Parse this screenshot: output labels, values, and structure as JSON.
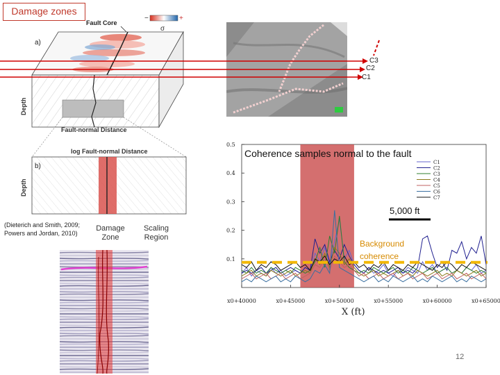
{
  "slide": {
    "title": "Damage zones",
    "citation_line1": "(Dieterich and Smith, 2009;",
    "citation_line2": "Powers and Jordan, 2010)",
    "slide_number": "12",
    "panel_a": {
      "label": "a)",
      "fault_core": "Fault Core",
      "sigma": "σ",
      "minus": "−",
      "plus": "+",
      "depth": "Depth",
      "xlabel": "Fault-normal Distance"
    },
    "panel_b": {
      "label": "b)",
      "top_label": "log Fault-normal Distance",
      "depth": "Depth",
      "damage_zone_1": "Damage",
      "damage_zone_2": "Zone",
      "scaling_1": "Scaling",
      "scaling_2": "Region"
    },
    "seismic_lines": [
      "C3",
      "C2",
      "C1"
    ],
    "annotations": {
      "scale": "5,000 ft",
      "background_1": "Background",
      "background_2": "coherence"
    }
  },
  "chart_data": {
    "type": "line",
    "title": "Coherence samples normal to the fault",
    "xlabel": "X (ft)",
    "ylabel": "",
    "xlim": [
      40000,
      65000
    ],
    "ylim": [
      0,
      0.5
    ],
    "x_ticks": [
      "x0+40000",
      "x0+45000",
      "x0+50000",
      "x0+55000",
      "x0+60000",
      "x0+65000"
    ],
    "y_ticks": [
      "0.1",
      "0.2",
      "0.3",
      "0.4",
      "0.5"
    ],
    "damage_zone_x": [
      46000,
      51500
    ],
    "background_level": 0.088,
    "legend_position": "right",
    "series": [
      {
        "name": "C1",
        "color": "#6666cc",
        "values": [
          0.05,
          0.07,
          0.04,
          0.06,
          0.05,
          0.04,
          0.07,
          0.05,
          0.06,
          0.04,
          0.05,
          0.06,
          0.05,
          0.07,
          0.06,
          0.12,
          0.09,
          0.14,
          0.08,
          0.16,
          0.24,
          0.1,
          0.13,
          0.08,
          0.06,
          0.05,
          0.07,
          0.05,
          0.06,
          0.08,
          0.05,
          0.04,
          0.06,
          0.05,
          0.07,
          0.06,
          0.05,
          0.09,
          0.06,
          0.08,
          0.05,
          0.06,
          0.07,
          0.05,
          0.06,
          0.05,
          0.07,
          0.06,
          0.08,
          0.05,
          0.06
        ]
      },
      {
        "name": "C2",
        "color": "#1f1f8f",
        "values": [
          0.05,
          0.06,
          0.05,
          0.06,
          0.07,
          0.05,
          0.06,
          0.07,
          0.05,
          0.06,
          0.07,
          0.06,
          0.05,
          0.07,
          0.06,
          0.17,
          0.12,
          0.15,
          0.09,
          0.13,
          0.1,
          0.15,
          0.11,
          0.08,
          0.06,
          0.05,
          0.07,
          0.06,
          0.05,
          0.06,
          0.05,
          0.06,
          0.07,
          0.05,
          0.06,
          0.05,
          0.07,
          0.17,
          0.18,
          0.12,
          0.07,
          0.09,
          0.06,
          0.13,
          0.12,
          0.16,
          0.1,
          0.14,
          0.12,
          0.18,
          0.08
        ]
      },
      {
        "name": "C3",
        "color": "#2f7f2f",
        "values": [
          0.06,
          0.05,
          0.07,
          0.05,
          0.06,
          0.05,
          0.07,
          0.06,
          0.05,
          0.06,
          0.05,
          0.07,
          0.06,
          0.05,
          0.06,
          0.09,
          0.14,
          0.07,
          0.18,
          0.12,
          0.25,
          0.09,
          0.07,
          0.06,
          0.05,
          0.06,
          0.05,
          0.07,
          0.06,
          0.05,
          0.06,
          0.07,
          0.05,
          0.06,
          0.05,
          0.07,
          0.06,
          0.05,
          0.06,
          0.07,
          0.05,
          0.06,
          0.07,
          0.05,
          0.06,
          0.05,
          0.07,
          0.06,
          0.05,
          0.06,
          0.05
        ]
      },
      {
        "name": "C4",
        "color": "#8b7a1a",
        "values": [
          0.04,
          0.05,
          0.06,
          0.04,
          0.05,
          0.04,
          0.06,
          0.05,
          0.04,
          0.05,
          0.06,
          0.04,
          0.05,
          0.06,
          0.05,
          0.1,
          0.08,
          0.12,
          0.07,
          0.14,
          0.12,
          0.08,
          0.1,
          0.07,
          0.05,
          0.04,
          0.05,
          0.06,
          0.04,
          0.05,
          0.04,
          0.05,
          0.06,
          0.04,
          0.05,
          0.04,
          0.06,
          0.05,
          0.04,
          0.05,
          0.06,
          0.04,
          0.05,
          0.04,
          0.06,
          0.05,
          0.04,
          0.05,
          0.06,
          0.04,
          0.05
        ]
      },
      {
        "name": "C5",
        "color": "#c06060",
        "values": [
          0.03,
          0.04,
          0.05,
          0.03,
          0.04,
          0.05,
          0.03,
          0.04,
          0.05,
          0.03,
          0.04,
          0.05,
          0.03,
          0.04,
          0.05,
          0.08,
          0.07,
          0.1,
          0.06,
          0.11,
          0.09,
          0.07,
          0.08,
          0.06,
          0.04,
          0.05,
          0.03,
          0.04,
          0.05,
          0.03,
          0.04,
          0.05,
          0.03,
          0.04,
          0.05,
          0.03,
          0.04,
          0.05,
          0.03,
          0.04,
          0.05,
          0.03,
          0.04,
          0.05,
          0.03,
          0.04,
          0.05,
          0.03,
          0.04,
          0.05,
          0.03
        ]
      },
      {
        "name": "C6",
        "color": "#3a6fa0",
        "values": [
          0.02,
          0.03,
          0.02,
          0.04,
          0.03,
          0.02,
          0.03,
          0.04,
          0.02,
          0.03,
          0.02,
          0.04,
          0.03,
          0.02,
          0.03,
          0.06,
          0.05,
          0.08,
          0.05,
          0.27,
          0.07,
          0.06,
          0.05,
          0.04,
          0.03,
          0.02,
          0.03,
          0.04,
          0.02,
          0.03,
          0.02,
          0.04,
          0.03,
          0.02,
          0.03,
          0.04,
          0.02,
          0.03,
          0.02,
          0.04,
          0.03,
          0.02,
          0.03,
          0.04,
          0.02,
          0.03,
          0.02,
          0.04,
          0.03,
          0.02,
          0.03
        ]
      },
      {
        "name": "C7",
        "color": "#111111",
        "values": [
          0.08,
          0.07,
          0.09,
          0.06,
          0.08,
          0.07,
          0.09,
          0.08,
          0.06,
          0.07,
          0.08,
          0.09,
          0.07,
          0.08,
          0.06,
          0.1,
          0.09,
          0.11,
          0.08,
          0.1,
          0.09,
          0.11,
          0.08,
          0.09,
          0.07,
          0.08,
          0.06,
          0.08,
          0.07,
          0.09,
          0.06,
          0.08,
          0.07,
          0.06,
          0.08,
          0.07,
          0.09,
          0.08,
          0.07,
          0.06,
          0.08,
          0.07,
          0.09,
          0.08,
          0.06,
          0.08,
          0.07,
          0.09,
          0.08,
          0.07,
          0.06
        ]
      }
    ]
  }
}
